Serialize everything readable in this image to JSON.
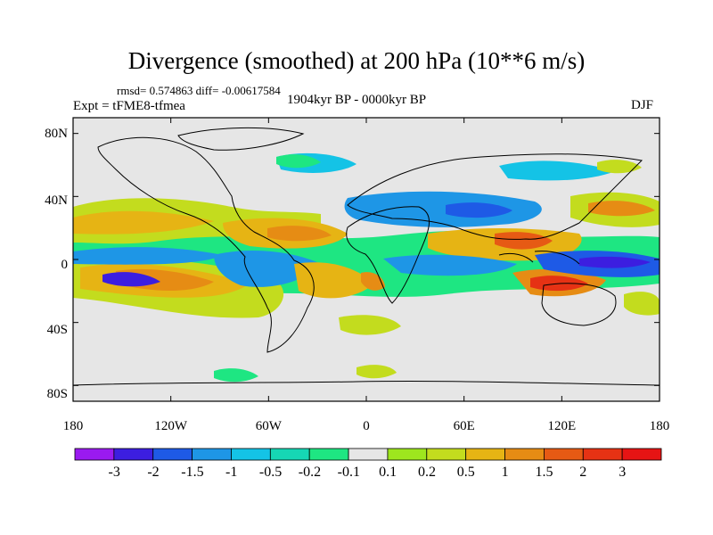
{
  "figure": {
    "title": "Divergence (smoothed) at 200 hPa (10**6 m/s)",
    "stats": "rmsd= 0.574863  diff= -0.00617584",
    "experiment": "Expt = tFME8-tfmea",
    "period": "1904kyr BP - 0000kyr BP",
    "season": "DJF"
  },
  "axes": {
    "lon_ticks": [
      {
        "lon": -180,
        "label": "180"
      },
      {
        "lon": -120,
        "label": "120W"
      },
      {
        "lon": -60,
        "label": "60W"
      },
      {
        "lon": 0,
        "label": "0"
      },
      {
        "lon": 60,
        "label": "60E"
      },
      {
        "lon": 120,
        "label": "120E"
      },
      {
        "lon": 180,
        "label": "180"
      }
    ],
    "lat_ticks": [
      {
        "lat": 80,
        "label": "80N"
      },
      {
        "lat": 40,
        "label": "40N"
      },
      {
        "lat": 0,
        "label": "0"
      },
      {
        "lat": -40,
        "label": "40S"
      },
      {
        "lat": -80,
        "label": "80S"
      }
    ]
  },
  "colorbar": {
    "colors": [
      "#9a1af0",
      "#3c1ee0",
      "#1e5ae6",
      "#1e96e6",
      "#14c3e6",
      "#16d7b4",
      "#1ee682",
      "#e6e6e6",
      "#9ee61e",
      "#c3dc1e",
      "#e6b414",
      "#e68c14",
      "#e65a14",
      "#e63214",
      "#e61414"
    ],
    "labels": [
      "-3",
      "-2",
      "-1.5",
      "-1",
      "-0.5",
      "-0.2",
      "-0.1",
      "0.1",
      "0.2",
      "0.5",
      "1",
      "1.5",
      "2",
      "3"
    ]
  },
  "palette": {
    "neg_strong": "#3c1ee0",
    "neg_mid": "#1e96e6",
    "neg_weak": "#14c3e6",
    "neg_light": "#1ee682",
    "neutral": "#e6e6e6",
    "pos_light": "#c3dc1e",
    "pos_mid": "#e6b414",
    "pos_strong": "#e65a14",
    "pos_max": "#e63214"
  }
}
